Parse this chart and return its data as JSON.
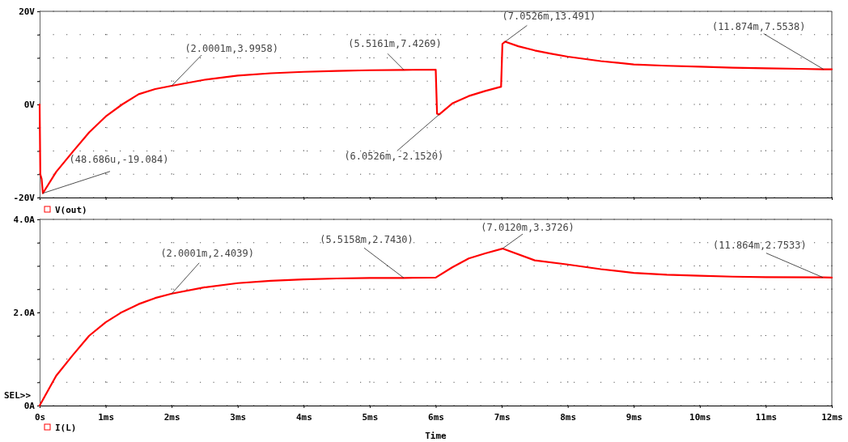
{
  "chart_data": [
    {
      "type": "line",
      "xlim": [
        0,
        12
      ],
      "xticks": [
        {
          "value": 0,
          "label": null
        },
        {
          "value": 1,
          "label": null
        },
        {
          "value": 2,
          "label": null
        },
        {
          "value": 3,
          "label": null
        },
        {
          "value": 4,
          "label": null
        },
        {
          "value": 5,
          "label": null
        },
        {
          "value": 6,
          "label": null
        },
        {
          "value": 7,
          "label": null
        },
        {
          "value": 8,
          "label": null
        },
        {
          "value": 9,
          "label": null
        },
        {
          "value": 10,
          "label": null
        },
        {
          "value": 11,
          "label": null
        },
        {
          "value": 12,
          "label": null
        }
      ],
      "ylim": [
        -20,
        20
      ],
      "yticks": [
        {
          "value": -20,
          "label": "-20V"
        },
        {
          "value": -15,
          "label": null
        },
        {
          "value": -10,
          "label": null
        },
        {
          "value": -5,
          "label": null
        },
        {
          "value": 0,
          "label": "0V"
        },
        {
          "value": 5,
          "label": null
        },
        {
          "value": 10,
          "label": null
        },
        {
          "value": 15,
          "label": null
        },
        {
          "value": 20,
          "label": "20V"
        }
      ],
      "tick_labels": "y",
      "grid": true,
      "legend": "bottom left",
      "line_style": "solid",
      "marker": "none",
      "series": [
        {
          "name": "V(out)",
          "color": "#ff0000",
          "x": [
            0,
            0.01,
            0.03,
            0.048686,
            0.25,
            0.5,
            0.75,
            1,
            1.25,
            1.5,
            1.75,
            2.0001,
            2.5,
            3,
            3.5,
            4,
            4.5,
            5,
            5.5161,
            6,
            6.02,
            6.0526,
            6.25,
            6.5,
            6.75,
            6.99,
            7.01,
            7.0526,
            7.25,
            7.5,
            7.75,
            8,
            8.5,
            9,
            9.5,
            10,
            10.5,
            11,
            11.5,
            11.874,
            12
          ],
          "values": [
            0,
            -15,
            -16,
            -19.084,
            -14.5,
            -10.2,
            -6,
            -2.6,
            0,
            2.2,
            3.3,
            3.9958,
            5.3,
            6.2,
            6.7,
            7,
            7.2,
            7.35,
            7.4269,
            7.45,
            -2,
            -2.152,
            0.2,
            1.8,
            2.9,
            3.8,
            13,
            13.491,
            12.5,
            11.6,
            10.9,
            10.26,
            9.3,
            8.6,
            8.3,
            8.1,
            7.9,
            7.77,
            7.65,
            7.5538,
            7.55
          ]
        }
      ],
      "annotations": [
        {
          "text": "(48.686u,-19.084)",
          "x": 0.048686,
          "y": -19.084
        },
        {
          "text": "(2.0001m,3.9958)",
          "x": 2.0001,
          "y": 3.9958
        },
        {
          "text": "(5.5161m,7.4269)",
          "x": 5.5161,
          "y": 7.4269
        },
        {
          "text": "(6.0526m,-2.1520)",
          "x": 6.0526,
          "y": -2.152
        },
        {
          "text": "(7.0526m,13.491)",
          "x": 7.0526,
          "y": 13.491
        },
        {
          "text": "(11.874m,7.5538)",
          "x": 11.874,
          "y": 7.5538
        }
      ]
    },
    {
      "type": "line",
      "xlabel": "Time",
      "xlim": [
        0,
        12
      ],
      "xticks": [
        {
          "value": 0,
          "label": "0s"
        },
        {
          "value": 1,
          "label": "1ms"
        },
        {
          "value": 2,
          "label": "2ms"
        },
        {
          "value": 3,
          "label": "3ms"
        },
        {
          "value": 4,
          "label": "4ms"
        },
        {
          "value": 5,
          "label": "5ms"
        },
        {
          "value": 6,
          "label": "6ms"
        },
        {
          "value": 7,
          "label": "7ms"
        },
        {
          "value": 8,
          "label": "8ms"
        },
        {
          "value": 9,
          "label": "9ms"
        },
        {
          "value": 10,
          "label": "10ms"
        },
        {
          "value": 11,
          "label": "11ms"
        },
        {
          "value": 12,
          "label": "12ms"
        }
      ],
      "ylim": [
        0,
        4
      ],
      "yticks": [
        {
          "value": 0,
          "label": "0A"
        },
        {
          "value": 0.5,
          "label": null
        },
        {
          "value": 1,
          "label": null
        },
        {
          "value": 1.5,
          "label": null
        },
        {
          "value": 2,
          "label": "2.0A"
        },
        {
          "value": 2.5,
          "label": null
        },
        {
          "value": 3,
          "label": null
        },
        {
          "value": 3.5,
          "label": null
        },
        {
          "value": 4,
          "label": "4.0A"
        }
      ],
      "grid": true,
      "legend": "bottom left",
      "line_style": "solid",
      "marker": "none",
      "series": [
        {
          "name": "I(L)",
          "color": "#ff0000",
          "x": [
            0,
            0.25,
            0.5,
            0.75,
            1,
            1.25,
            1.5,
            1.75,
            2.0001,
            2.5,
            3,
            3.5,
            4,
            4.5,
            5,
            5.5158,
            6,
            6.25,
            6.5,
            6.75,
            7.012,
            7.5,
            8,
            8.5,
            9,
            9.5,
            10,
            10.5,
            11,
            11.864,
            12
          ],
          "values": [
            0,
            0.64,
            1.08,
            1.5,
            1.79,
            2.01,
            2.18,
            2.31,
            2.4039,
            2.54,
            2.63,
            2.68,
            2.71,
            2.73,
            2.74,
            2.743,
            2.75,
            2.97,
            3.16,
            3.27,
            3.3726,
            3.12,
            3.03,
            2.93,
            2.85,
            2.81,
            2.79,
            2.77,
            2.76,
            2.7533,
            2.75
          ]
        }
      ],
      "annotations": [
        {
          "text": "(2.0001m,2.4039)",
          "x": 2.0001,
          "y": 2.4039
        },
        {
          "text": "(5.5158m,2.7430)",
          "x": 5.5158,
          "y": 2.743
        },
        {
          "text": "(7.0120m,3.3726)",
          "x": 7.012,
          "y": 3.3726
        },
        {
          "text": "(11.864m,2.7533)",
          "x": 11.864,
          "y": 2.7533
        },
        "SEL>>"
      ]
    }
  ]
}
